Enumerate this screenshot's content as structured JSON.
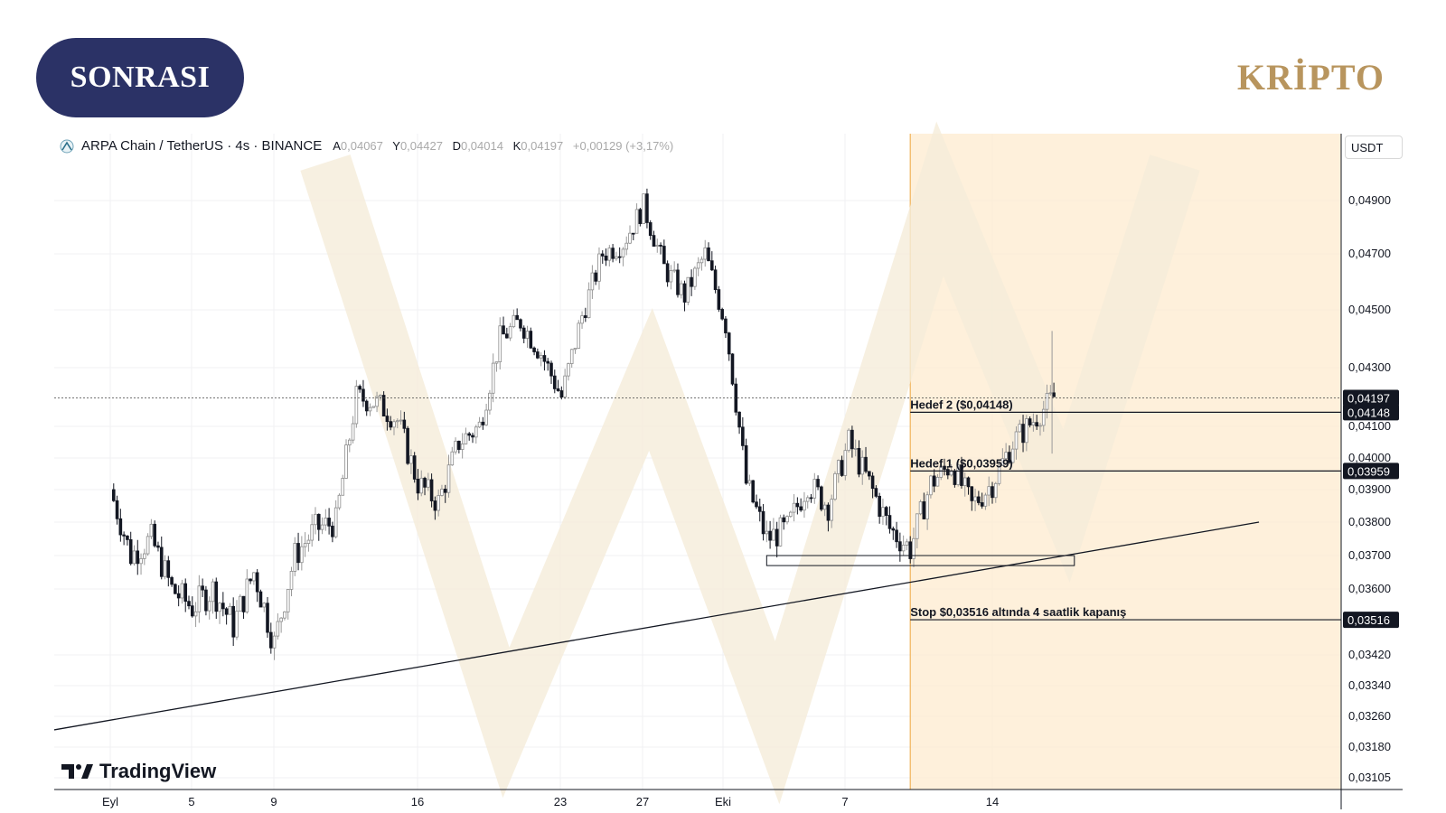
{
  "brand": {
    "left_label": "SONRASI",
    "right_label": "KRİPTO"
  },
  "legend": {
    "symbol": "ARPA Chain / TetherUS · 4s · BINANCE",
    "open_key": "A",
    "open": "0,04067",
    "high_key": "Y",
    "high": "0,04427",
    "low_key": "D",
    "low": "0,04014",
    "close_key": "K",
    "close": "0,04197",
    "change": "+0,00129 (+3,17%)"
  },
  "currency": "USDT",
  "watermark": "TradingView",
  "colors": {
    "accent": "#2b3266",
    "brand_gold": "#b8955e",
    "highlight": "#fdebcf",
    "highlight_border": "#f0b35a"
  },
  "chart_data": {
    "type": "candlestick",
    "price_labels": [
      "0,04900",
      "0,04700",
      "0,04500",
      "0,04300",
      "0,04100",
      "0,04000",
      "0,03900",
      "0,03800",
      "0,03700",
      "0,03600",
      "0,03420",
      "0,03340",
      "0,03260",
      "0,03180",
      "0,03105"
    ],
    "x_labels": [
      "Eyl",
      "5",
      "9",
      "16",
      "23",
      "27",
      "Eki",
      "7",
      "14"
    ],
    "current_price": {
      "value": 0.04197,
      "label": "0,04197"
    },
    "levels": [
      {
        "name": "Hedef 2 ($0,04148)",
        "value": 0.04148,
        "label": "0,04148"
      },
      {
        "name": "Hedef 1 ($0,03959)",
        "value": 0.03959,
        "label": "0,03959"
      },
      {
        "name": "Stop $0,03516 altında 4 saatlik kapanış",
        "value": 0.03516,
        "label": "0,03516"
      }
    ],
    "trendline": {
      "from": {
        "date": "2023-09-01",
        "price": 0.0325
      },
      "to": {
        "date": "2023-10-27",
        "price": 0.038
      }
    },
    "support_box": {
      "from_date": "2023-10-03",
      "to_date": "2023-10-18",
      "price_low": 0.0367,
      "price_high": 0.037
    },
    "highlight_zone": {
      "from_date": "2023-10-10"
    },
    "path_points": [
      [
        "2023-09-01",
        0.039
      ],
      [
        "2023-09-02",
        0.037
      ],
      [
        "2023-09-03",
        0.0375
      ],
      [
        "2023-09-04",
        0.036
      ],
      [
        "2023-09-05",
        0.0355
      ],
      [
        "2023-09-06",
        0.036
      ],
      [
        "2023-09-07",
        0.035
      ],
      [
        "2023-09-08",
        0.0365
      ],
      [
        "2023-09-09",
        0.0345
      ],
      [
        "2023-09-10",
        0.037
      ],
      [
        "2023-09-11",
        0.0378
      ],
      [
        "2023-09-12",
        0.038
      ],
      [
        "2023-09-13",
        0.042
      ],
      [
        "2023-09-14",
        0.0418
      ],
      [
        "2023-09-15",
        0.0412
      ],
      [
        "2023-09-16",
        0.0392
      ],
      [
        "2023-09-17",
        0.0386
      ],
      [
        "2023-09-18",
        0.0405
      ],
      [
        "2023-09-19",
        0.041
      ],
      [
        "2023-09-20",
        0.044
      ],
      [
        "2023-09-21",
        0.0446
      ],
      [
        "2023-09-22",
        0.0435
      ],
      [
        "2023-09-23",
        0.042
      ],
      [
        "2023-09-24",
        0.0448
      ],
      [
        "2023-09-25",
        0.047
      ],
      [
        "2023-09-26",
        0.0474
      ],
      [
        "2023-09-27",
        0.0488
      ],
      [
        "2023-09-28",
        0.0465
      ],
      [
        "2023-09-29",
        0.0455
      ],
      [
        "2023-09-30",
        0.047
      ],
      [
        "2023-10-01",
        0.0445
      ],
      [
        "2023-10-02",
        0.0392
      ],
      [
        "2023-10-03",
        0.0375
      ],
      [
        "2023-10-04",
        0.0378
      ],
      [
        "2023-10-05",
        0.0392
      ],
      [
        "2023-10-06",
        0.0385
      ],
      [
        "2023-10-07",
        0.0405
      ],
      [
        "2023-10-08",
        0.0392
      ],
      [
        "2023-10-09",
        0.0378
      ],
      [
        "2023-10-10",
        0.0372
      ],
      [
        "2023-10-11",
        0.0392
      ],
      [
        "2023-10-12",
        0.0398
      ],
      [
        "2023-10-13",
        0.0385
      ],
      [
        "2023-10-14",
        0.0392
      ],
      [
        "2023-10-15",
        0.0405
      ],
      [
        "2023-10-16",
        0.0412
      ],
      [
        "2023-10-17",
        0.042
      ]
    ]
  }
}
